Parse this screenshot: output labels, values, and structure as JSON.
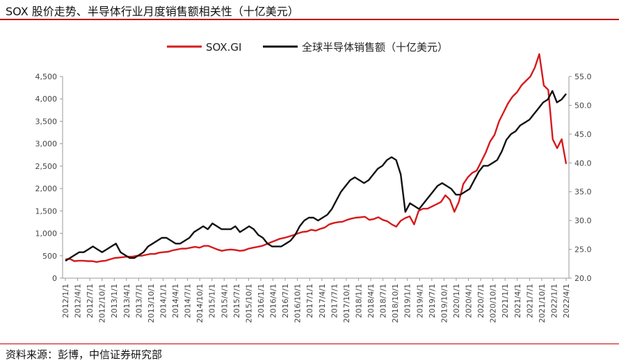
{
  "header": {
    "title": "SOX 股价走势、半导体行业月度销售额相关性（十亿美元）"
  },
  "footer": {
    "source": "资料来源：彭博，中信证券研究部"
  },
  "colors": {
    "sox": "#d7191c",
    "sales": "#111111",
    "accent": "#c00000"
  },
  "chart_data": {
    "type": "line",
    "title": "SOX 股价走势、半导体行业月度销售额相关性（十亿美元）",
    "legend": "top-center",
    "grid": false,
    "x_tick_labels": [
      "2012/1/1",
      "2012/4/1",
      "2012/7/1",
      "2012/10/1",
      "2013/1/1",
      "2013/4/1",
      "2013/7/1",
      "2013/10/1",
      "2014/1/1",
      "2014/4/1",
      "2014/7/1",
      "2014/10/1",
      "2015/1/1",
      "2015/4/1",
      "2015/7/1",
      "2015/10/1",
      "2016/1/1",
      "2016/4/1",
      "2016/7/1",
      "2016/10/1",
      "2017/1/1",
      "2017/4/1",
      "2017/7/1",
      "2017/10/1",
      "2018/1/1",
      "2018/4/1",
      "2018/7/1",
      "2018/10/1",
      "2019/1/1",
      "2019/4/1",
      "2019/7/1",
      "2019/10/1",
      "2020/1/1",
      "2020/4/1",
      "2020/7/1",
      "2020/10/1",
      "2021/1/1",
      "2021/4/1",
      "2021/7/1",
      "2021/10/1",
      "2022/1/1",
      "2022/4/1"
    ],
    "y_left": {
      "lim": [
        0,
        4500
      ],
      "ticks": [
        "0",
        "500",
        "1,000",
        "1,500",
        "2,000",
        "2,500",
        "3,000",
        "3,500",
        "4,000",
        "4,500"
      ]
    },
    "y_right": {
      "lim": [
        20,
        55
      ],
      "ticks": [
        "20.0",
        "25.0",
        "30.0",
        "35.0",
        "40.0",
        "45.0",
        "50.0",
        "55.0"
      ]
    },
    "series": [
      {
        "name": "SOX.GI",
        "axis": "left",
        "values": [
          420,
          430,
          380,
          390,
          390,
          380,
          380,
          360,
          380,
          390,
          420,
          450,
          460,
          470,
          480,
          480,
          500,
          500,
          520,
          540,
          540,
          570,
          580,
          590,
          620,
          640,
          660,
          660,
          680,
          700,
          680,
          720,
          720,
          680,
          640,
          610,
          630,
          640,
          630,
          610,
          620,
          660,
          680,
          700,
          720,
          760,
          800,
          840,
          880,
          900,
          930,
          960,
          1000,
          1030,
          1040,
          1080,
          1060,
          1100,
          1130,
          1200,
          1230,
          1250,
          1260,
          1300,
          1330,
          1350,
          1360,
          1370,
          1300,
          1320,
          1360,
          1300,
          1270,
          1200,
          1150,
          1280,
          1340,
          1380,
          1200,
          1500,
          1550,
          1550,
          1600,
          1650,
          1700,
          1850,
          1750,
          1480,
          1700,
          2100,
          2250,
          2350,
          2400,
          2600,
          2800,
          3050,
          3200,
          3500,
          3700,
          3900,
          4050,
          4150,
          4300,
          4400,
          4500,
          4700,
          5000,
          4300,
          4200,
          3100,
          2900,
          3100,
          2550
        ]
      },
      {
        "name": "全球半导体销售额（十亿美元）",
        "axis": "right",
        "values": [
          23.0,
          23.5,
          24.0,
          24.5,
          24.5,
          25.0,
          25.5,
          25.0,
          24.5,
          25.0,
          25.5,
          26.0,
          24.5,
          24.0,
          23.5,
          23.5,
          24.0,
          24.5,
          25.5,
          26.0,
          26.5,
          27.0,
          27.0,
          26.5,
          26.0,
          26.0,
          26.5,
          27.0,
          28.0,
          28.5,
          29.0,
          28.5,
          29.5,
          29.0,
          28.5,
          28.5,
          28.5,
          29.0,
          28.0,
          28.5,
          29.0,
          28.5,
          27.5,
          27.0,
          26.0,
          25.5,
          25.5,
          25.5,
          26.0,
          26.5,
          27.5,
          29.0,
          30.0,
          30.5,
          30.5,
          30.0,
          30.5,
          31.0,
          32.0,
          33.5,
          35.0,
          36.0,
          37.0,
          37.5,
          37.0,
          36.5,
          37.0,
          38.0,
          39.0,
          39.5,
          40.5,
          41.0,
          40.5,
          38.0,
          31.5,
          33.0,
          32.5,
          32.0,
          33.0,
          34.0,
          35.0,
          36.0,
          36.5,
          36.0,
          35.5,
          34.5,
          34.5,
          35.0,
          35.5,
          37.0,
          38.5,
          39.5,
          39.5,
          40.0,
          40.5,
          42.0,
          44.0,
          45.0,
          45.5,
          46.5,
          47.0,
          47.5,
          48.5,
          49.5,
          50.5,
          51.0,
          52.5,
          50.5,
          51.0,
          52.0
        ]
      }
    ]
  }
}
